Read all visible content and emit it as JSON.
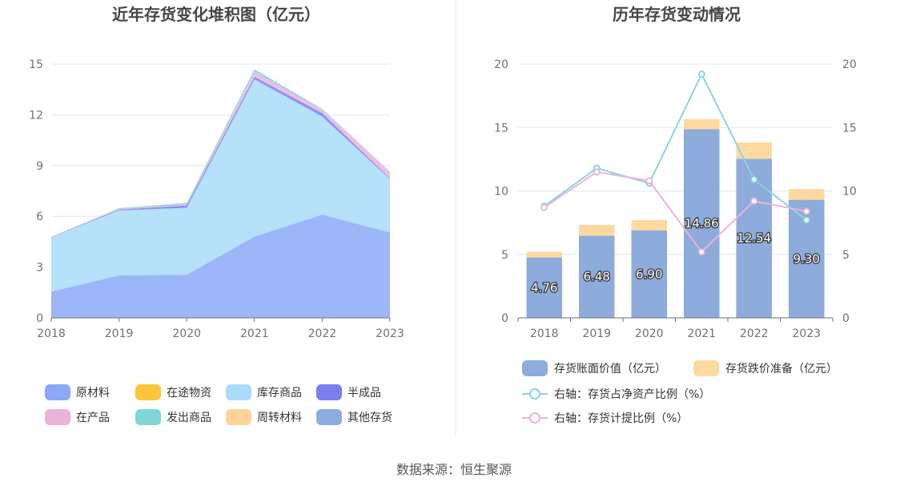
{
  "source_text": "数据来源：恒生聚源",
  "chart_data": [
    {
      "type": "area",
      "title": "近年存货变化堆积图（亿元）",
      "categories": [
        "2018",
        "2019",
        "2020",
        "2021",
        "2022",
        "2023"
      ],
      "y_ticks": [
        "0",
        "3",
        "6",
        "9",
        "12",
        "15"
      ],
      "ylim": [
        0,
        15
      ],
      "stacked": true,
      "series": [
        {
          "name": "原材料",
          "color": "#8ca8f8",
          "values": [
            1.55,
            2.5,
            2.55,
            4.8,
            6.1,
            5.05
          ]
        },
        {
          "name": "在途物资",
          "color": "#fdc63a",
          "values": [
            0,
            0,
            0,
            0,
            0,
            0
          ]
        },
        {
          "name": "库存商品",
          "color": "#a8dcf8",
          "values": [
            3.2,
            3.85,
            3.95,
            9.3,
            5.8,
            3.15
          ]
        },
        {
          "name": "半成品",
          "color": "#7b7ff0",
          "values": [
            0.02,
            0.05,
            0.15,
            0.15,
            0.2,
            0.05
          ]
        },
        {
          "name": "在产品",
          "color": "#e8b4dc",
          "values": [
            0.02,
            0.05,
            0.05,
            0.3,
            0.2,
            0.4
          ]
        },
        {
          "name": "发出商品",
          "color": "#7fd6d8",
          "values": [
            0,
            0.03,
            0.1,
            0.15,
            0.05,
            0
          ]
        },
        {
          "name": "周转材料",
          "color": "#fcd49a",
          "values": [
            0,
            0,
            0,
            0,
            0,
            0
          ]
        },
        {
          "name": "其他存货",
          "color": "#8caede",
          "values": [
            0,
            0,
            0,
            0,
            0,
            0
          ]
        }
      ],
      "grid": true,
      "legend_position": "bottom"
    },
    {
      "type": "bar",
      "title": "历年存货变动情况",
      "categories": [
        "2018",
        "2019",
        "2020",
        "2021",
        "2022",
        "2023"
      ],
      "y_ticks": [
        "0",
        "5",
        "10",
        "15",
        "20"
      ],
      "y2_ticks": [
        "0",
        "5",
        "10",
        "15",
        "20"
      ],
      "ylim": [
        0,
        20
      ],
      "y2lim": [
        0,
        20
      ],
      "stacked": true,
      "series": [
        {
          "name": "存货账面价值（亿元）",
          "type": "bar",
          "color": "#8dabdb",
          "values": [
            4.76,
            6.48,
            6.9,
            14.86,
            12.54,
            9.3
          ],
          "labels": [
            "4.76",
            "6.48",
            "6.90",
            "14.86",
            "12.54",
            "9.30"
          ]
        },
        {
          "name": "存货跌价准备（亿元）",
          "type": "bar",
          "color": "#fdd9a0",
          "values": [
            0.45,
            0.85,
            0.8,
            0.8,
            1.3,
            0.85
          ]
        },
        {
          "name": "右轴：存货占净资产比例（%）",
          "type": "line",
          "axis": "right",
          "color": "#88d6dc",
          "values": [
            8.8,
            11.8,
            10.6,
            19.2,
            10.9,
            7.7
          ]
        },
        {
          "name": "右轴：存货计提比例（%）",
          "type": "line",
          "axis": "right",
          "color": "#eab4dc",
          "values": [
            8.7,
            11.5,
            10.8,
            5.2,
            9.2,
            8.4
          ]
        }
      ],
      "grid": true,
      "legend_position": "bottom"
    }
  ]
}
